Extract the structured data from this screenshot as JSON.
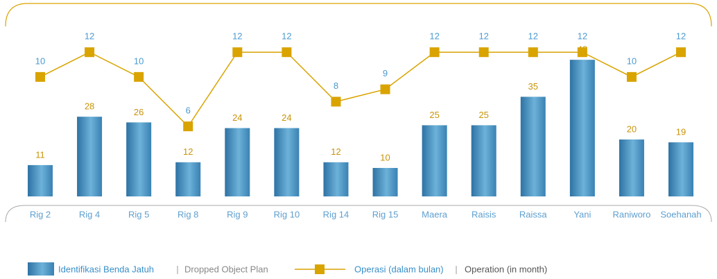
{
  "chart_data": {
    "type": "bar+line",
    "categories": [
      "Rig 2",
      "Rig 4",
      "Rig 5",
      "Rig 8",
      "Rig 9",
      "Rig 10",
      "Rig 14",
      "Rig 15",
      "Maera",
      "Raisis",
      "Raissa",
      "Yani",
      "Raniworo",
      "Soehanah"
    ],
    "series": [
      {
        "name": "Identifikasi Benda Jatuh",
        "name_en": "Dropped Object Plan",
        "color": "#3f86b8",
        "type": "bar",
        "values": [
          11,
          28,
          26,
          12,
          24,
          24,
          12,
          10,
          25,
          25,
          35,
          48,
          20,
          19
        ]
      },
      {
        "name": "Operasi (dalam bulan)",
        "name_en": "Operation (in month)",
        "color": "#d9a300",
        "type": "line",
        "axis": "y2",
        "values": [
          10,
          12,
          10,
          6,
          12,
          12,
          8,
          9,
          12,
          12,
          12,
          12,
          10,
          12
        ]
      }
    ],
    "ylim": [
      0,
      69
    ],
    "y2lim": [
      0,
      15.1
    ]
  }
}
